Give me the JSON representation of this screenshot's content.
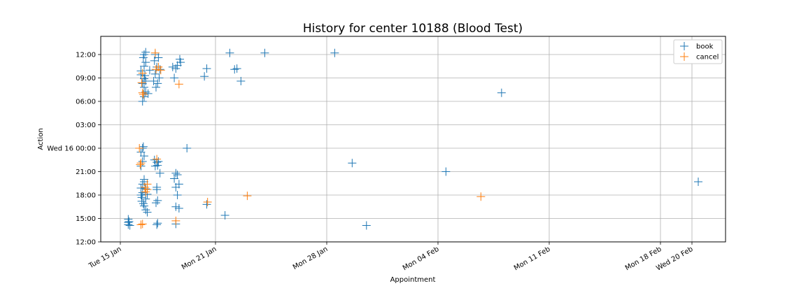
{
  "chart_data": {
    "type": "scatter",
    "title": "History for center 10188 (Blood Test)",
    "xlabel": "Appointment",
    "ylabel": "Action",
    "x_unit": "day-of-month (Jan 2019; values past 31 continue into Feb)",
    "y_unit": "hours from Tue 15 Jan 12:00",
    "xlim": [
      14.6,
      49.1
    ],
    "ylim": [
      0,
      24.4
    ],
    "grid": true,
    "legend_position": "top-right",
    "x_ticks": [
      {
        "value": 15.0,
        "label": "Tue 15 Jan"
      },
      {
        "value": 21.0,
        "label": "Mon 21 Jan"
      },
      {
        "value": 28.0,
        "label": "Mon 28 Jan"
      },
      {
        "value": 35.0,
        "label": "Mon 04 Feb"
      },
      {
        "value": 42.0,
        "label": "Mon 11 Feb"
      },
      {
        "value": 49.0,
        "label": "Mon 18 Feb"
      },
      {
        "value": 51.0,
        "label": "Wed 20 Feb"
      }
    ],
    "y_ticks": [
      {
        "value": 0,
        "label": "12:00"
      },
      {
        "value": 3,
        "label": "15:00"
      },
      {
        "value": 6,
        "label": "18:00"
      },
      {
        "value": 9,
        "label": "21:00"
      },
      {
        "value": 12,
        "label": "Wed 16 00:00"
      },
      {
        "value": 15,
        "label": "03:00"
      },
      {
        "value": 18,
        "label": "06:00"
      },
      {
        "value": 21,
        "label": "09:00"
      },
      {
        "value": 24,
        "label": "12:00"
      }
    ],
    "series": [
      {
        "name": "book",
        "color": "#1f77b4",
        "points": [
          [
            15.5,
            2.9
          ],
          [
            15.55,
            2.6
          ],
          [
            15.5,
            2.2
          ],
          [
            15.6,
            2.1
          ],
          [
            15.5,
            2.5
          ],
          [
            16.3,
            6.0
          ],
          [
            16.35,
            5.7
          ],
          [
            16.4,
            6.3
          ],
          [
            16.3,
            6.9
          ],
          [
            16.4,
            7.4
          ],
          [
            16.5,
            8.0
          ],
          [
            16.35,
            5.2
          ],
          [
            16.45,
            4.9
          ],
          [
            16.5,
            4.6
          ],
          [
            16.6,
            4.1
          ],
          [
            16.7,
            3.8
          ],
          [
            16.6,
            5.5
          ],
          [
            16.7,
            6.1
          ],
          [
            16.6,
            6.8
          ],
          [
            16.5,
            7.7
          ],
          [
            16.3,
            9.7
          ],
          [
            16.4,
            10.3
          ],
          [
            16.5,
            11.0
          ],
          [
            16.4,
            12.0
          ],
          [
            16.3,
            11.5
          ],
          [
            16.45,
            12.2
          ],
          [
            16.4,
            18.0
          ],
          [
            16.5,
            18.6
          ],
          [
            16.6,
            19.2
          ],
          [
            16.5,
            19.8
          ],
          [
            16.4,
            20.3
          ],
          [
            16.5,
            20.9
          ],
          [
            16.55,
            21.3
          ],
          [
            16.3,
            21.9
          ],
          [
            16.5,
            22.5
          ],
          [
            16.6,
            23.0
          ],
          [
            16.45,
            23.6
          ],
          [
            16.5,
            24.0
          ],
          [
            16.6,
            24.3
          ],
          [
            16.3,
            21.4
          ],
          [
            16.6,
            20.6
          ],
          [
            16.75,
            19.0
          ],
          [
            16.85,
            22.0
          ],
          [
            17.2,
            9.7
          ],
          [
            17.3,
            10.2
          ],
          [
            17.4,
            10.3
          ],
          [
            17.15,
            10.5
          ],
          [
            17.35,
            9.8
          ],
          [
            17.3,
            7.0
          ],
          [
            17.25,
            5.0
          ],
          [
            17.3,
            2.2
          ],
          [
            17.35,
            2.4
          ],
          [
            17.1,
            20.6
          ],
          [
            17.2,
            21.5
          ],
          [
            17.3,
            22.4
          ],
          [
            17.15,
            23.2
          ],
          [
            17.4,
            23.6
          ],
          [
            17.2,
            24.0
          ],
          [
            17.25,
            19.8
          ],
          [
            17.5,
            22.1
          ],
          [
            17.35,
            20.3
          ],
          [
            17.45,
            21.0
          ],
          [
            17.3,
            6.7
          ],
          [
            17.35,
            5.3
          ],
          [
            17.5,
            8.8
          ],
          [
            18.4,
            8.1
          ],
          [
            18.5,
            8.8
          ],
          [
            18.6,
            8.6
          ],
          [
            18.7,
            7.4
          ],
          [
            18.5,
            7.0
          ],
          [
            18.6,
            6.0
          ],
          [
            18.5,
            4.5
          ],
          [
            18.7,
            4.3
          ],
          [
            18.5,
            2.3
          ],
          [
            18.4,
            21.0
          ],
          [
            18.5,
            22.2
          ],
          [
            18.6,
            22.6
          ],
          [
            18.75,
            23.4
          ],
          [
            18.8,
            23.0
          ],
          [
            18.3,
            22.4
          ],
          [
            19.2,
            12.0
          ],
          [
            20.3,
            21.2
          ],
          [
            20.45,
            22.2
          ],
          [
            20.45,
            4.8
          ],
          [
            21.6,
            3.4
          ],
          [
            22.2,
            22.1
          ],
          [
            22.35,
            22.2
          ],
          [
            22.6,
            20.6
          ],
          [
            21.9,
            24.2
          ],
          [
            24.1,
            24.2
          ],
          [
            28.5,
            24.2
          ],
          [
            29.6,
            10.1
          ],
          [
            30.5,
            2.1
          ],
          [
            35.5,
            9.0
          ],
          [
            39.0,
            19.1
          ],
          [
            51.4,
            7.7
          ]
        ]
      },
      {
        "name": "cancel",
        "color": "#ff7f0e",
        "points": [
          [
            16.2,
            12.0
          ],
          [
            16.3,
            10.1
          ],
          [
            16.4,
            19.1
          ],
          [
            16.35,
            20.4
          ],
          [
            16.4,
            21.6
          ],
          [
            16.45,
            18.9
          ],
          [
            16.4,
            2.3
          ],
          [
            16.3,
            2.2
          ],
          [
            16.6,
            6.4
          ],
          [
            16.7,
            6.7
          ],
          [
            16.55,
            7.0
          ],
          [
            16.7,
            7.4
          ],
          [
            16.25,
            9.9
          ],
          [
            17.2,
            24.2
          ],
          [
            17.25,
            22.1
          ],
          [
            17.4,
            22.4
          ],
          [
            17.55,
            22.0
          ],
          [
            17.3,
            10.6
          ],
          [
            18.5,
            2.7
          ],
          [
            18.7,
            20.2
          ],
          [
            20.5,
            5.1
          ],
          [
            23.0,
            5.9
          ],
          [
            37.7,
            5.8
          ]
        ]
      }
    ]
  }
}
